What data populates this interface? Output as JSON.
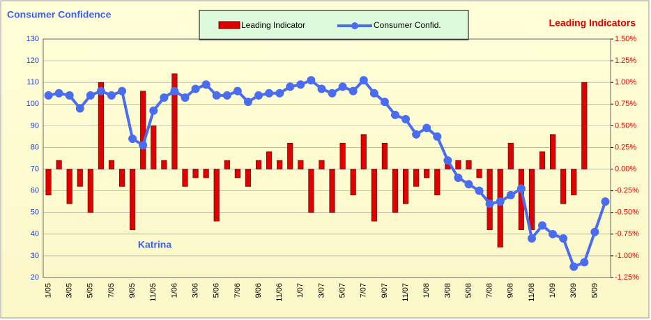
{
  "chart_data": {
    "type": "bar_line",
    "title": "Consumer Confidence",
    "y2_title": "Leading Indicators",
    "annotation": "Katrina",
    "categories": [
      "1/05",
      null,
      "3/05",
      null,
      "5/05",
      null,
      "7/05",
      null,
      "9/05",
      null,
      "11/05",
      null,
      "1/06",
      null,
      "3/06",
      null,
      "5/06",
      null,
      "7/06",
      null,
      "9/06",
      null,
      "11/06",
      null,
      "1/07",
      null,
      "3/07",
      null,
      "5/07",
      null,
      "7/07",
      null,
      "9/07",
      null,
      "11/07",
      null,
      "1/08",
      null,
      "3/08",
      null,
      "5/08",
      null,
      "7/08",
      null,
      "9/08",
      null,
      "11/08",
      null,
      "1/09",
      null,
      "3/09",
      null,
      "5/09",
      null
    ],
    "series": [
      {
        "name": "Leading Indicator",
        "color": "#e00000",
        "axis": "y2",
        "kind": "bar",
        "values": [
          -0.3,
          0.1,
          -0.4,
          -0.2,
          -0.5,
          1.0,
          0.1,
          -0.2,
          -0.7,
          0.9,
          0.5,
          0.1,
          1.1,
          -0.2,
          -0.1,
          -0.1,
          -0.6,
          0.1,
          -0.1,
          -0.2,
          0.1,
          0.2,
          0.1,
          0.3,
          0.1,
          -0.5,
          0.1,
          -0.5,
          0.3,
          -0.3,
          0.4,
          -0.6,
          0.3,
          -0.5,
          -0.4,
          -0.2,
          -0.1,
          -0.3,
          0.1,
          0.1,
          0.1,
          -0.1,
          -0.7,
          -0.9,
          0.3,
          -0.7,
          -0.7,
          0.2,
          0.4,
          -0.4,
          -0.3,
          1.0,
          null,
          null
        ]
      },
      {
        "name": "Consumer Confid.",
        "color": "#4a6cf0",
        "kind": "line",
        "values": [
          104,
          105,
          104,
          98,
          104,
          106,
          104,
          106,
          84,
          81,
          97,
          103,
          106,
          103,
          107,
          109,
          104,
          104,
          106,
          101,
          104,
          105,
          105,
          108,
          109,
          111,
          107,
          105,
          108,
          106,
          111,
          105,
          101,
          95,
          93,
          86,
          89,
          85,
          74,
          66,
          63,
          60,
          54,
          55,
          58,
          61,
          38,
          44,
          40,
          38,
          25,
          27,
          41,
          55
        ]
      }
    ],
    "ylim": [
      20,
      130
    ],
    "yticks": [
      20,
      30,
      40,
      50,
      60,
      70,
      80,
      90,
      100,
      110,
      120,
      130
    ],
    "y2lim": [
      -1.25,
      1.5
    ],
    "y2ticks": [
      {
        "value": -1.25,
        "label": "-1.25%"
      },
      {
        "value": -1.0,
        "label": "-1.00%"
      },
      {
        "value": -0.75,
        "label": "-0.75%"
      },
      {
        "value": -0.5,
        "label": "-0.50%"
      },
      {
        "value": -0.25,
        "label": "-0.25%"
      },
      {
        "value": 0,
        "label": "0.00%"
      },
      {
        "value": 0.25,
        "label": "0.25%"
      },
      {
        "value": 0.5,
        "label": "0.50%"
      },
      {
        "value": 0.75,
        "label": "0.75%"
      },
      {
        "value": 1.0,
        "label": "1.00%"
      },
      {
        "value": 1.25,
        "label": "1.25%"
      },
      {
        "value": 1.5,
        "label": "1.50%"
      }
    ],
    "grid": true
  }
}
